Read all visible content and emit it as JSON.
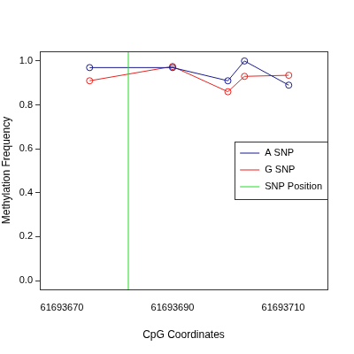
{
  "chart_data": {
    "type": "line",
    "x_label": "CpG Coordinates",
    "y_label": "Methylation Frequency",
    "xlim": [
      61693666,
      61693718
    ],
    "xticks": [
      61693670,
      61693690,
      61693710
    ],
    "ylim": [
      -0.04,
      1.044
    ],
    "yticks": [
      {
        "value": 0,
        "label": "0.0"
      },
      0.2,
      0.4,
      0.6,
      0.8,
      {
        "value": 1,
        "label": "1.0"
      }
    ],
    "grid": false,
    "legend": "right",
    "series": [
      {
        "name": "A SNP",
        "color": "#1a1a8c",
        "marker": "open_circle",
        "line_style": "solid",
        "x": [
          61693675,
          61693690,
          61693700,
          61693703,
          61693711
        ],
        "values": [
          0.97,
          0.97,
          0.91,
          1.0,
          0.89
        ]
      },
      {
        "name": "G SNP",
        "color": "#e8231f",
        "marker": "open_circle",
        "line_style": "solid",
        "x": [
          61693675,
          61693690,
          61693700,
          61693703,
          61693711
        ],
        "values": [
          0.91,
          0.975,
          0.86,
          0.93,
          0.935
        ]
      },
      {
        "name": "SNP Position",
        "color": "#22dd22",
        "type": "vline",
        "line_style": "solid",
        "x": [
          61693682
        ]
      }
    ]
  }
}
